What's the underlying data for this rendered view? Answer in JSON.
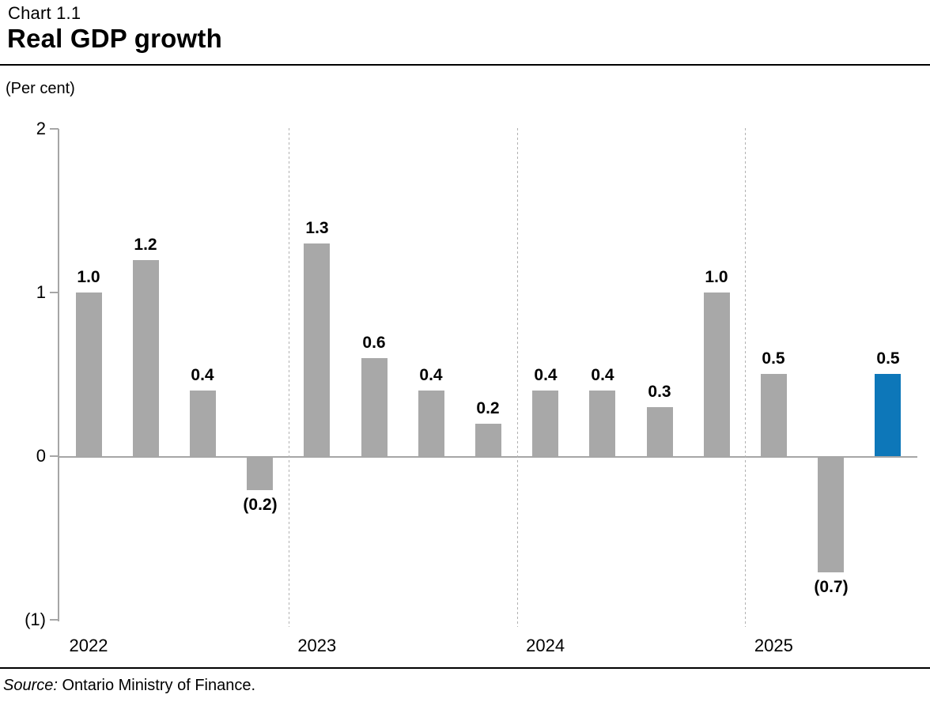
{
  "header": {
    "chart_number": "Chart 1.1",
    "title": "Real GDP growth"
  },
  "unit_label": "(Per cent)",
  "source": {
    "prefix": "Source:",
    "text": " Ontario Ministry of Finance."
  },
  "chart_data": {
    "type": "bar",
    "title": "Real GDP growth",
    "ylabel": "(Per cent)",
    "ylim": [
      -1,
      2
    ],
    "grid": "dashed-vertical-year-separators",
    "legend_position": "none",
    "colors": {
      "bar_default": "#a8a8a8",
      "bar_highlight": "#0d77b9",
      "axis": "#a6a6a6",
      "separator": "#b2b2b2"
    },
    "y_ticks": [
      {
        "value": 2,
        "label": "2"
      },
      {
        "value": 1,
        "label": "1"
      },
      {
        "value": 0,
        "label": "0"
      },
      {
        "value": -1,
        "label": "(1)"
      }
    ],
    "categories": [
      "2022",
      "2023",
      "2024",
      "2025"
    ],
    "groups": [
      {
        "year": "2022",
        "bars": [
          {
            "value": 1.0,
            "label": "1.0",
            "highlight": false
          },
          {
            "value": 1.2,
            "label": "1.2",
            "highlight": false
          },
          {
            "value": 0.4,
            "label": "0.4",
            "highlight": false
          },
          {
            "value": -0.2,
            "label": "(0.2)",
            "highlight": false
          }
        ]
      },
      {
        "year": "2023",
        "bars": [
          {
            "value": 1.3,
            "label": "1.3",
            "highlight": false
          },
          {
            "value": 0.6,
            "label": "0.6",
            "highlight": false
          },
          {
            "value": 0.4,
            "label": "0.4",
            "highlight": false
          },
          {
            "value": 0.2,
            "label": "0.2",
            "highlight": false
          }
        ]
      },
      {
        "year": "2024",
        "bars": [
          {
            "value": 0.4,
            "label": "0.4",
            "highlight": false
          },
          {
            "value": 0.4,
            "label": "0.4",
            "highlight": false
          },
          {
            "value": 0.3,
            "label": "0.3",
            "highlight": false
          },
          {
            "value": 1.0,
            "label": "1.0",
            "highlight": false
          }
        ]
      },
      {
        "year": "2025",
        "bars": [
          {
            "value": 0.5,
            "label": "0.5",
            "highlight": false
          },
          {
            "value": -0.7,
            "label": "(0.7)",
            "highlight": false
          },
          {
            "value": 0.5,
            "label": "0.5",
            "highlight": true
          }
        ]
      }
    ]
  }
}
